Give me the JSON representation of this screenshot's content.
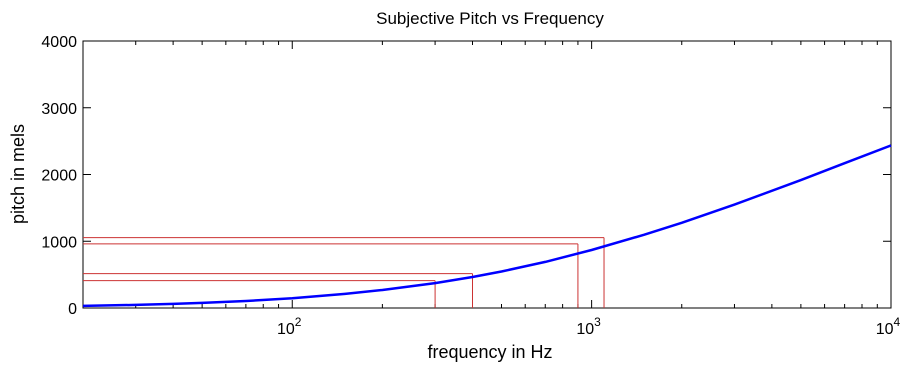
{
  "chart_data": {
    "type": "line",
    "title": "Subjective Pitch vs Frequency",
    "xlabel": "frequency in Hz",
    "ylabel": "pitch in mels",
    "x_scale": "log",
    "xlim": [
      20,
      10000
    ],
    "ylim": [
      0,
      4000
    ],
    "x_ticks": [
      {
        "value": 100,
        "base": "10",
        "exp": "2"
      },
      {
        "value": 1000,
        "base": "10",
        "exp": "3"
      },
      {
        "value": 10000,
        "base": "10",
        "exp": "4"
      }
    ],
    "y_ticks": [
      {
        "value": 0,
        "label": "0"
      },
      {
        "value": 1000,
        "label": "1000"
      },
      {
        "value": 2000,
        "label": "2000"
      },
      {
        "value": 3000,
        "label": "3000"
      },
      {
        "value": 4000,
        "label": "4000"
      }
    ],
    "grid": false,
    "series": [
      {
        "color": "#0000ff",
        "x": [
          20,
          30,
          40,
          50,
          70,
          100,
          150,
          200,
          300,
          400,
          500,
          700,
          1000,
          1500,
          2000,
          3000,
          5000,
          7000,
          10000
        ],
        "y": [
          31,
          47,
          62,
          77,
          105,
          146,
          211,
          269,
          373,
          464,
          547,
          691,
          869,
          1098,
          1277,
          1549,
          1916,
          2169,
          2436
        ]
      }
    ],
    "reference_lines": [
      {
        "x": 300,
        "y": 410,
        "color": "#cc3333"
      },
      {
        "x": 400,
        "y": 515,
        "color": "#cc3333"
      },
      {
        "x": 900,
        "y": 960,
        "color": "#cc3333"
      },
      {
        "x": 1100,
        "y": 1055,
        "color": "#cc3333"
      }
    ]
  }
}
